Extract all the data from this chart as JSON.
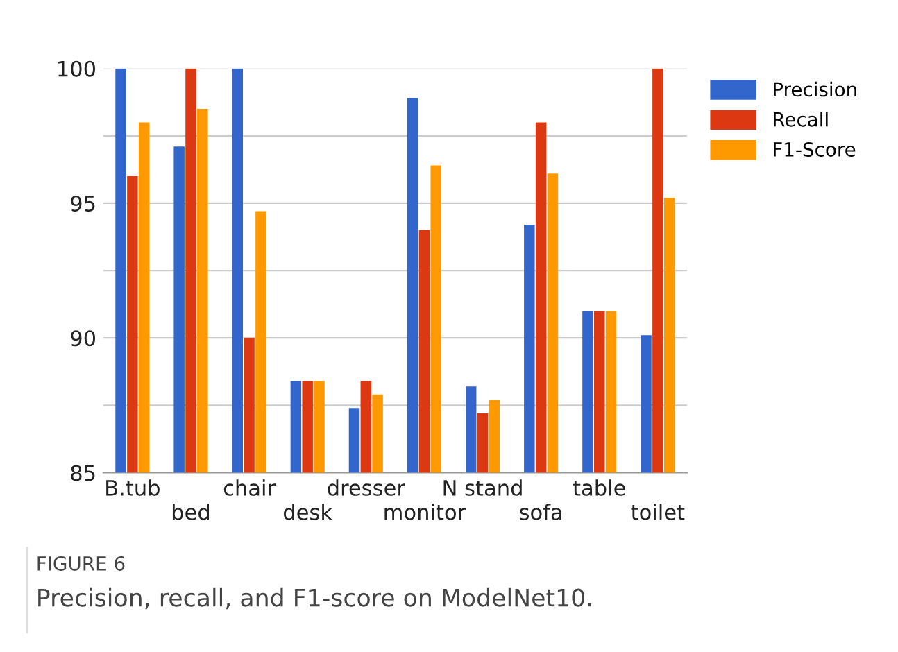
{
  "chart_data": {
    "type": "bar",
    "categories": [
      "B.tub",
      "bed",
      "chair",
      "desk",
      "dresser",
      "monitor",
      "N stand",
      "sofa",
      "table",
      "toilet"
    ],
    "series": [
      {
        "name": "Precision",
        "color": "#3366cc",
        "values": [
          100,
          97.1,
          100,
          88.4,
          87.4,
          98.9,
          88.2,
          94.2,
          91.0,
          90.1
        ]
      },
      {
        "name": "Recall",
        "color": "#dc3912",
        "values": [
          96.0,
          100,
          90.0,
          88.4,
          88.4,
          94.0,
          87.2,
          98.0,
          91.0,
          100
        ]
      },
      {
        "name": "F1-Score",
        "color": "#ff9900",
        "values": [
          98.0,
          98.5,
          94.7,
          88.4,
          87.9,
          96.4,
          87.7,
          96.1,
          91.0,
          95.2
        ]
      }
    ],
    "ylim": [
      85,
      100
    ],
    "yticks": [
      85,
      {
        "value": 87.5,
        "label": null
      },
      90,
      {
        "value": 92.5,
        "label": null
      },
      95,
      {
        "value": 97.5,
        "label": null
      },
      100
    ],
    "grid": "y",
    "legend": "top right",
    "annotations": [
      "FIGURE 6",
      "Precision, recall, and F1-score on ModelNet10."
    ]
  }
}
